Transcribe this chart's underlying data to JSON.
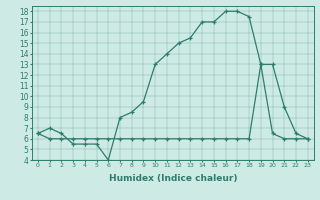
{
  "xlabel": "Humidex (Indice chaleur)",
  "xlim": [
    -0.5,
    23.5
  ],
  "ylim": [
    4,
    18.5
  ],
  "xticks": [
    0,
    1,
    2,
    3,
    4,
    5,
    6,
    7,
    8,
    9,
    10,
    11,
    12,
    13,
    14,
    15,
    16,
    17,
    18,
    19,
    20,
    21,
    22,
    23
  ],
  "yticks": [
    4,
    5,
    6,
    7,
    8,
    9,
    10,
    11,
    12,
    13,
    14,
    15,
    16,
    17,
    18
  ],
  "line_color": "#2e7d6e",
  "bg_color": "#cdeae4",
  "curve1_x": [
    0,
    1,
    2,
    3,
    4,
    5,
    6,
    7,
    8,
    9,
    10,
    11,
    12,
    13,
    14,
    15,
    16,
    17,
    18,
    19,
    20,
    21,
    22,
    23
  ],
  "curve1_y": [
    6.5,
    7.0,
    6.5,
    5.5,
    5.5,
    5.5,
    4.0,
    8.0,
    8.5,
    9.5,
    13.0,
    14.0,
    15.0,
    15.5,
    17.0,
    17.0,
    18.0,
    18.0,
    17.5,
    13.0,
    13.0,
    9.0,
    6.5,
    6.0
  ],
  "curve2_x": [
    0,
    1,
    2,
    3,
    4,
    5,
    6,
    7,
    8,
    9,
    10,
    11,
    12,
    13,
    14,
    15,
    16,
    17,
    18,
    19,
    20,
    21,
    22,
    23
  ],
  "curve2_y": [
    6.5,
    6.0,
    6.0,
    6.0,
    6.0,
    6.0,
    6.0,
    6.0,
    6.0,
    6.0,
    6.0,
    6.0,
    6.0,
    6.0,
    6.0,
    6.0,
    6.0,
    6.0,
    6.0,
    13.0,
    6.5,
    6.0,
    6.0,
    6.0
  ]
}
